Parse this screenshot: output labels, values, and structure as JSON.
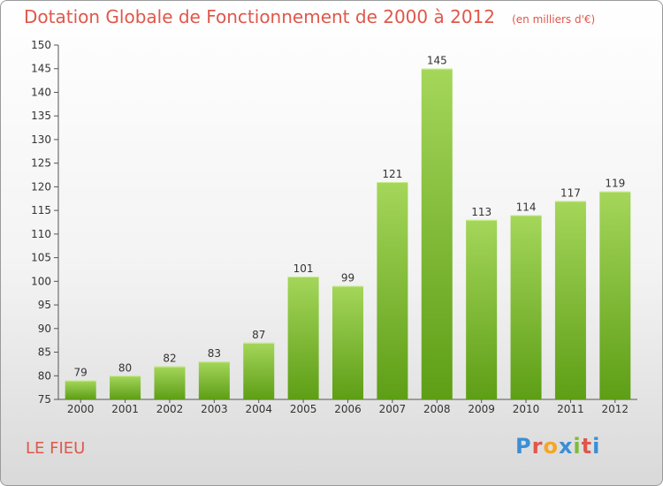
{
  "title": "Dotation Globale de Fonctionnement de 2000 à 2012",
  "unit_note": "(en milliers d'€)",
  "commune": "LE FIEU",
  "logo": {
    "letters": [
      "P",
      "r",
      "o",
      "x",
      "i",
      "t",
      "i"
    ],
    "colors": [
      "#3a8fd6",
      "#e0574a",
      "#f5a623",
      "#3a8fd6",
      "#7fb93a",
      "#e0574a",
      "#3a8fd6"
    ]
  },
  "colors": {
    "bar_top": "#a4d65a",
    "bar_bottom": "#5e9e16",
    "title": "#e0574a"
  },
  "chart_data": {
    "type": "bar",
    "title": "Dotation Globale de Fonctionnement de 2000 à 2012",
    "xlabel": "",
    "ylabel": "",
    "categories": [
      "2000",
      "2001",
      "2002",
      "2003",
      "2004",
      "2005",
      "2006",
      "2007",
      "2008",
      "2009",
      "2010",
      "2011",
      "2012"
    ],
    "values": [
      79,
      80,
      82,
      83,
      87,
      101,
      99,
      121,
      145,
      113,
      114,
      117,
      119
    ],
    "ylim": [
      75,
      150
    ],
    "yticks": [
      75,
      80,
      85,
      90,
      95,
      100,
      105,
      110,
      115,
      120,
      125,
      130,
      135,
      140,
      145,
      150
    ],
    "grid": false,
    "legend": "none"
  }
}
